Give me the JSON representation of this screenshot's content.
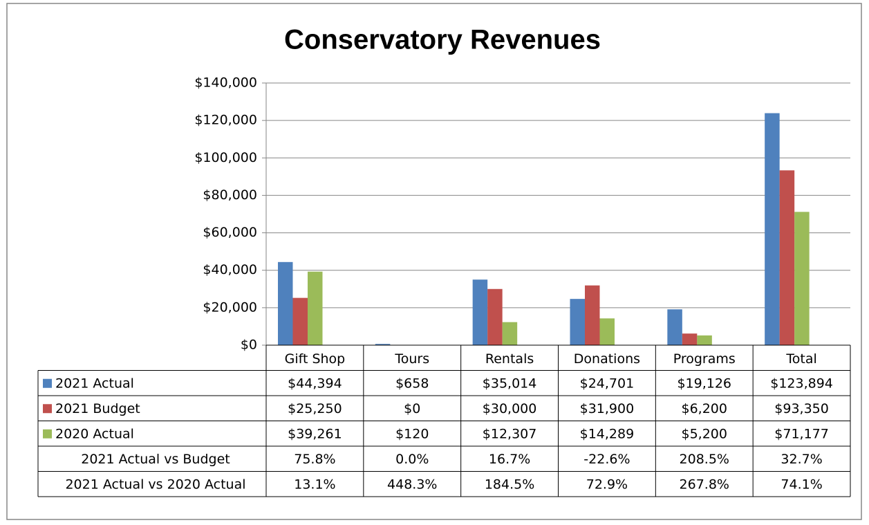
{
  "chart_data": {
    "type": "bar",
    "title": "Conservatory Revenues",
    "categories": [
      "Gift Shop",
      "Tours",
      "Rentals",
      "Donations",
      "Programs",
      "Total"
    ],
    "series": [
      {
        "name": "2021 Actual",
        "color": "#4f81bd",
        "values": [
          44394,
          658,
          35014,
          24701,
          19126,
          123894
        ],
        "value_labels": [
          "$44,394",
          "$658",
          "$35,014",
          "$24,701",
          "$19,126",
          "$123,894"
        ]
      },
      {
        "name": "2021 Budget",
        "color": "#c0504d",
        "values": [
          25250,
          0,
          30000,
          31900,
          6200,
          93350
        ],
        "value_labels": [
          "$25,250",
          "$0",
          "$30,000",
          "$31,900",
          "$6,200",
          "$93,350"
        ]
      },
      {
        "name": "2020 Actual",
        "color": "#9bbb59",
        "values": [
          39261,
          120,
          12307,
          14289,
          5200,
          71177
        ],
        "value_labels": [
          "$39,261",
          "$120",
          "$12,307",
          "$14,289",
          "$5,200",
          "$71,177"
        ]
      }
    ],
    "rows": [
      {
        "name": "2021 Actual vs Budget",
        "values": [
          75.8,
          0.0,
          16.7,
          -22.6,
          208.5,
          32.7
        ],
        "value_labels": [
          "75.8%",
          "0.0%",
          "16.7%",
          "-22.6%",
          "208.5%",
          "32.7%"
        ]
      },
      {
        "name": "2021 Actual vs 2020 Actual",
        "values": [
          13.1,
          448.3,
          184.5,
          72.9,
          267.8,
          74.1
        ],
        "value_labels": [
          "13.1%",
          "448.3%",
          "184.5%",
          "72.9%",
          "267.8%",
          "74.1%"
        ]
      }
    ],
    "ylim": [
      0,
      140000
    ],
    "yticks": [
      {
        "value": 0,
        "label": "$0"
      },
      {
        "value": 20000,
        "label": "$20,000"
      },
      {
        "value": 40000,
        "label": "$40,000"
      },
      {
        "value": 60000,
        "label": "$60,000"
      },
      {
        "value": 80000,
        "label": "$80,000"
      },
      {
        "value": 100000,
        "label": "$100,000"
      },
      {
        "value": 120000,
        "label": "$120,000"
      },
      {
        "value": 140000,
        "label": "$140,000"
      }
    ],
    "grid": true
  }
}
